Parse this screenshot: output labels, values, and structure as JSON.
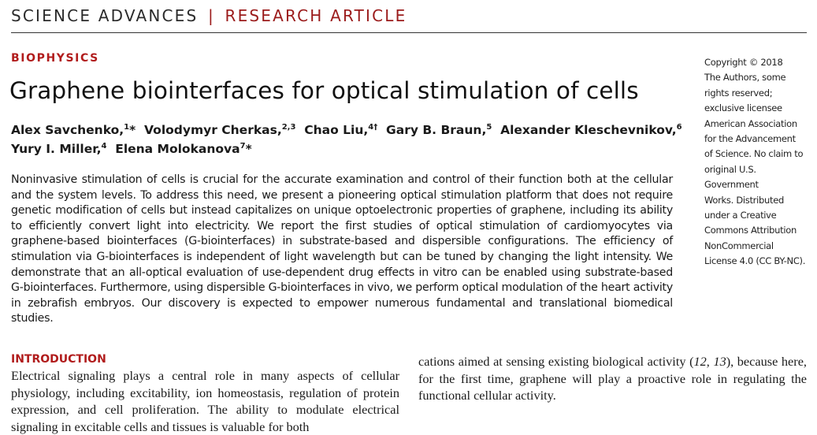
{
  "header": {
    "journal": "SCIENCE ADVANCES",
    "separator": "|",
    "article_type": "RESEARCH ARTICLE"
  },
  "section": "BIOPHYSICS",
  "title": "Graphene biointerfaces for optical stimulation of cells",
  "authors": [
    {
      "name": "Alex Savchenko,",
      "sup": "1",
      "mark": "*",
      "sep": " "
    },
    {
      "name": "Volodymyr Cherkas,",
      "sup": "2,3",
      "mark": "",
      "sep": " "
    },
    {
      "name": "Chao Liu,",
      "sup": "4†",
      "mark": "",
      "sep": " "
    },
    {
      "name": "Gary B. Braun,",
      "sup": "5",
      "mark": "",
      "sep": " "
    },
    {
      "name": "Alexander Kleschevnikov,",
      "sup": "6",
      "mark": "",
      "sep": " "
    },
    {
      "name": "Yury I. Miller,",
      "sup": "4",
      "mark": "",
      "sep": " "
    },
    {
      "name": "Elena Molokanova",
      "sup": "7",
      "mark": "*",
      "sep": ""
    }
  ],
  "abstract": "Noninvasive stimulation of cells is crucial for the accurate examination and control of their function both at the cellular and the system levels. To address this need, we present a pioneering optical stimulation platform that does not require genetic modification of cells but instead capitalizes on unique optoelectronic properties of graphene, including its ability to efficiently convert light into electricity. We report the first studies of optical stimulation of cardiomyocytes via graphene-based biointerfaces (G-biointerfaces) in substrate-based and dispersible configurations. The efficiency of stimulation via G-biointerfaces is independent of light wavelength but can be tuned by changing the light intensity. We demonstrate that an all-optical evaluation of use-dependent drug effects in vitro can be enabled using substrate-based G-biointerfaces. Furthermore, using dispersible G-biointerfaces in vivo, we perform optical modulation of the heart activity in zebrafish embryos. Our discovery is expected to empower numerous fundamental and translational biomedical studies.",
  "copyright_lines": [
    "Copyright © 2018",
    "The Authors, some",
    "rights reserved;",
    "exclusive licensee",
    "American Association",
    "for the Advancement",
    "of Science. No claim to",
    "original U.S. Government",
    "Works. Distributed",
    "under a Creative",
    "Commons Attribution",
    "NonCommercial",
    "License 4.0 (CC BY-NC)."
  ],
  "intro": {
    "heading": "INTRODUCTION",
    "left_text": "Electrical signaling plays a central role in many aspects of cellular physiology, including excitability, ion homeostasis, regulation of protein expression, and cell proliferation. The ability to modulate electrical",
    "left_cutoff_line": "signaling in excitable cells and tissues is valuable for both",
    "right_text_a": "cations aimed at sensing existing biological activity (",
    "ref_a": "12",
    "ref_sep": ", ",
    "ref_b": "13",
    "right_text_b": "), because here, for the first time, graphene will play a proactive role in regulating the functional cellular activity."
  }
}
